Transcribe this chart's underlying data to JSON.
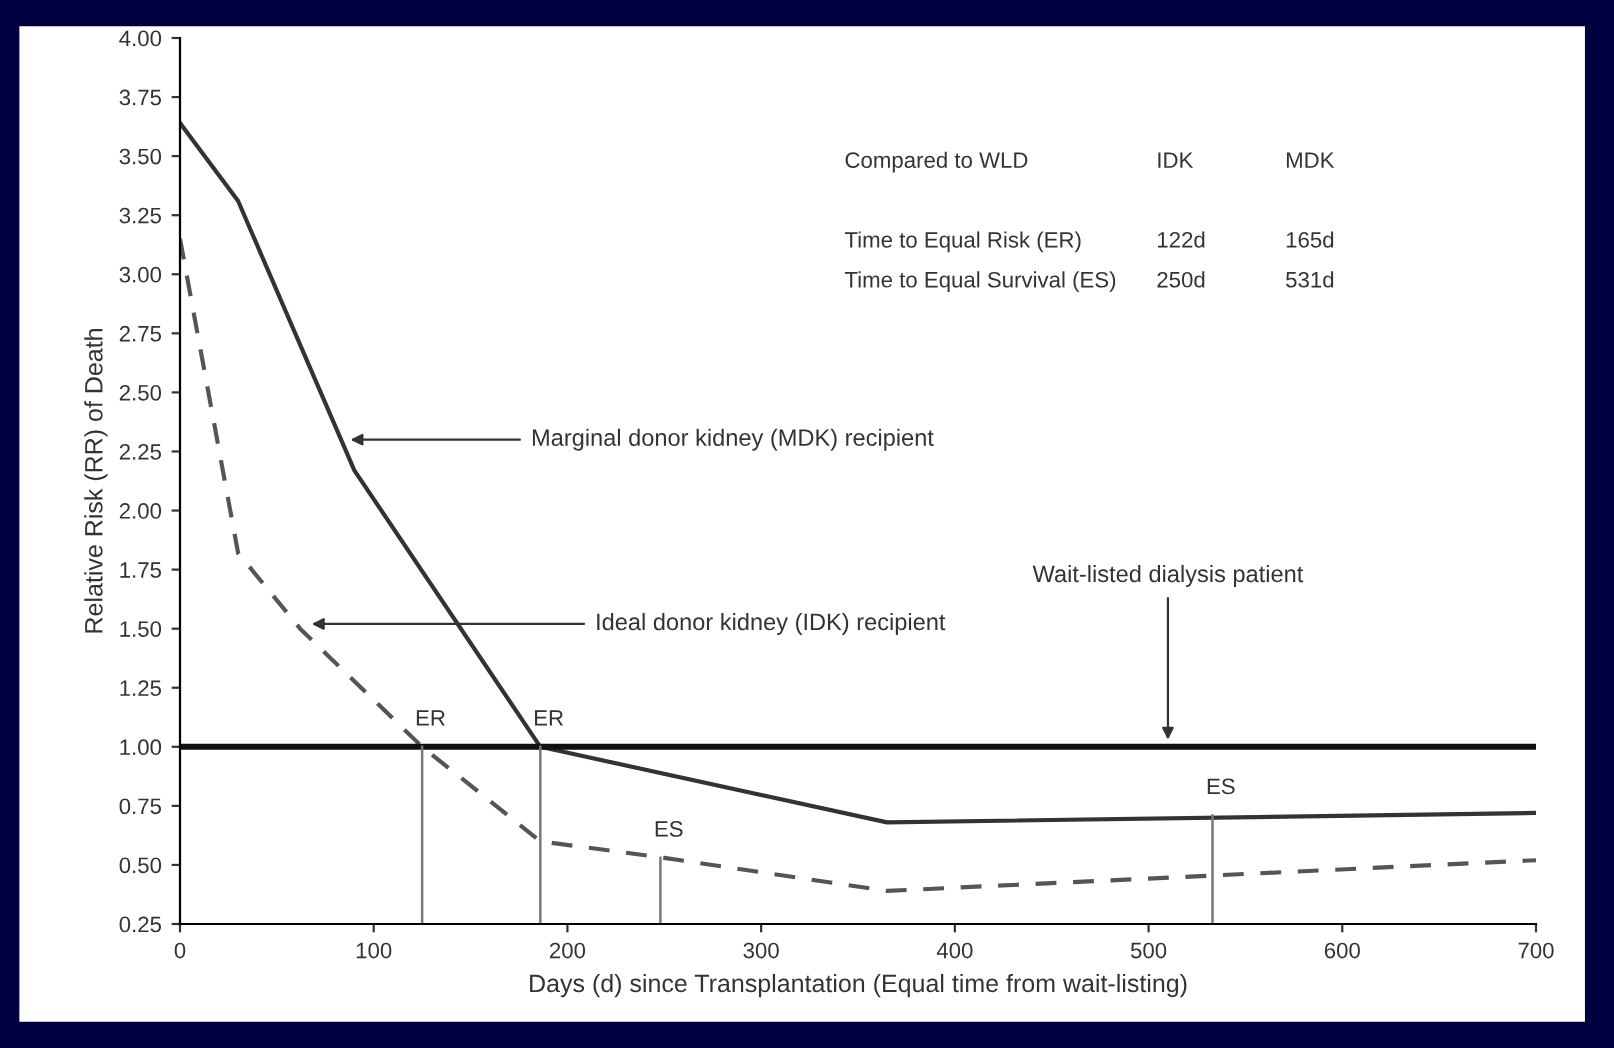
{
  "chart_data": {
    "type": "line",
    "xlabel": "Days (d) since Transplantation (Equal time from wait-listing)",
    "ylabel": "Relative Risk (RR) of Death",
    "series": [
      {
        "color": "#333333",
        "line_style": "solid",
        "x": [
          0,
          30,
          90,
          186,
          365,
          700
        ],
        "values": [
          3.64,
          3.31,
          2.17,
          1.0,
          0.68,
          0.72
        ]
      },
      {
        "color": "#555555",
        "line_style": "dashed",
        "x": [
          0,
          30,
          62,
          125,
          186,
          250,
          365,
          700
        ],
        "values": [
          3.15,
          1.82,
          1.5,
          1.0,
          0.6,
          0.53,
          0.39,
          0.52
        ]
      },
      {
        "color": "#111111",
        "line_style": "solid",
        "x": [
          0,
          700
        ],
        "values": [
          1.0,
          1.0
        ]
      }
    ],
    "xlim": [
      0,
      700
    ],
    "xticks": [
      0,
      100,
      200,
      300,
      400,
      500,
      600,
      700
    ],
    "ylim": [
      0.25,
      4.0
    ],
    "yticks": [
      {
        "value": 0.25,
        "label": "0.25"
      },
      {
        "value": 0.5,
        "label": "0.50"
      },
      {
        "value": 0.75,
        "label": "0.75"
      },
      {
        "value": 1.0,
        "label": "1.00"
      },
      {
        "value": 1.25,
        "label": "1.25"
      },
      {
        "value": 1.5,
        "label": "1.50"
      },
      {
        "value": 1.75,
        "label": "1.75"
      },
      {
        "value": 2.0,
        "label": "2.00"
      },
      {
        "value": 2.25,
        "label": "2.25"
      },
      {
        "value": 2.5,
        "label": "2.50"
      },
      {
        "value": 2.75,
        "label": "2.75"
      },
      {
        "value": 3.0,
        "label": "3.00"
      },
      {
        "value": 3.25,
        "label": "3.25"
      },
      {
        "value": 3.5,
        "label": "3.50"
      },
      {
        "value": 3.75,
        "label": "3.75"
      },
      {
        "value": 4.0,
        "label": "4.00"
      }
    ],
    "grid": false,
    "legend": false,
    "marker": "none",
    "annotations": [
      {
        "text": "Marginal donor kidney (MDK) recipient",
        "x": 88,
        "y": 2.3
      },
      {
        "text": "Ideal donor kidney (IDK) recipient",
        "x": 68,
        "y": 1.52
      },
      {
        "text": "Wait-listed dialysis patient",
        "x": 510,
        "y": 1.03
      },
      {
        "text": "ER",
        "x": 125,
        "y": 1.0
      },
      {
        "text": "ER",
        "x": 186,
        "y": 1.0
      },
      {
        "text": "ES",
        "x": 248,
        "y": 0.53
      },
      {
        "text": "ES",
        "x": 533,
        "y": 0.71
      },
      "Compared to WLD",
      "IDK",
      "MDK",
      "Time to Equal Risk (ER)",
      "122d",
      "165d",
      "Time to Equal Survival (ES)",
      "250d",
      "531d"
    ]
  }
}
